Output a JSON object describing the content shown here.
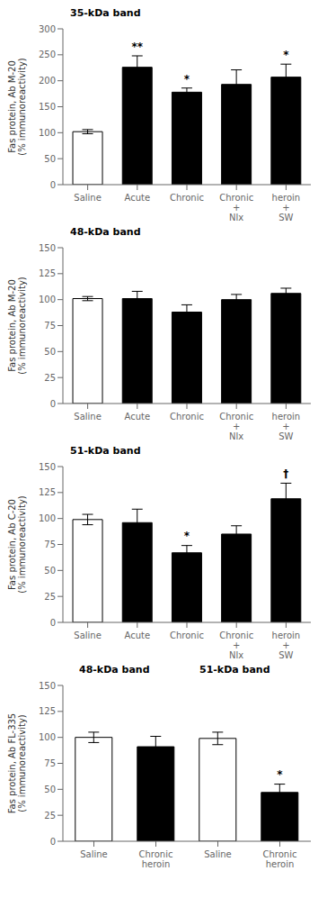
{
  "chart_data": [
    {
      "type": "bar",
      "title": "35-kDa band",
      "ylabel": "Fas protein, Ab M-20\n(% immunoreactivity)",
      "categories": [
        "Saline",
        "Acute",
        "Chronic",
        "Chronic\n+\nNlx",
        "heroin\n+\nSW"
      ],
      "values": [
        102,
        226,
        178,
        193,
        207
      ],
      "errors": [
        4,
        22,
        8,
        28,
        25
      ],
      "colors": [
        "white",
        "black",
        "black",
        "black",
        "black"
      ],
      "ylim": [
        0,
        300
      ],
      "yticks": [
        0,
        50,
        100,
        150,
        200,
        250,
        300
      ],
      "significance": [
        null,
        "**",
        "*",
        null,
        "*"
      ],
      "grid": false
    },
    {
      "type": "bar",
      "title": "48-kDa band",
      "ylabel": "Fas protein, Ab M-20\n(% immunoreactivity)",
      "categories": [
        "Saline",
        "Acute",
        "Chronic",
        "Chronic\n+\nNlx",
        "heroin\n+\nSW"
      ],
      "values": [
        101,
        101,
        88,
        100,
        106
      ],
      "errors": [
        2,
        7,
        7,
        5,
        5
      ],
      "colors": [
        "white",
        "black",
        "black",
        "black",
        "black"
      ],
      "ylim": [
        0,
        150
      ],
      "yticks": [
        0,
        25,
        50,
        75,
        100,
        125,
        150
      ],
      "significance": [
        null,
        null,
        null,
        null,
        null
      ],
      "grid": false
    },
    {
      "type": "bar",
      "title": "51-kDa band",
      "ylabel": "Fas protein, Ab C-20\n(% immunoreactivity)",
      "categories": [
        "Saline",
        "Acute",
        "Chronic",
        "Chronic\n+\nNlx",
        "heroin\n+\nSW"
      ],
      "values": [
        99,
        96,
        67,
        85,
        119
      ],
      "errors": [
        5,
        13,
        7,
        8,
        15
      ],
      "colors": [
        "white",
        "black",
        "black",
        "black",
        "black"
      ],
      "ylim": [
        0,
        150
      ],
      "yticks": [
        0,
        25,
        50,
        75,
        100,
        125,
        150
      ],
      "significance": [
        null,
        null,
        "*",
        null,
        "†"
      ],
      "grid": false
    },
    {
      "type": "bar",
      "group_titles": [
        "48-kDa band",
        "51-kDa band"
      ],
      "ylabel": "Fas protein, Ab FL-335\n(% immunoreactivity)",
      "categories": [
        "Saline",
        "Chronic\nheroin",
        "Saline",
        "Chronic\nheroin"
      ],
      "values": [
        100,
        91,
        99,
        47
      ],
      "errors": [
        5,
        10,
        6,
        8
      ],
      "colors": [
        "white",
        "black",
        "white",
        "black"
      ],
      "ylim": [
        0,
        150
      ],
      "yticks": [
        0,
        25,
        50,
        75,
        100,
        125,
        150
      ],
      "significance": [
        null,
        null,
        null,
        "*"
      ],
      "grid": false
    }
  ]
}
